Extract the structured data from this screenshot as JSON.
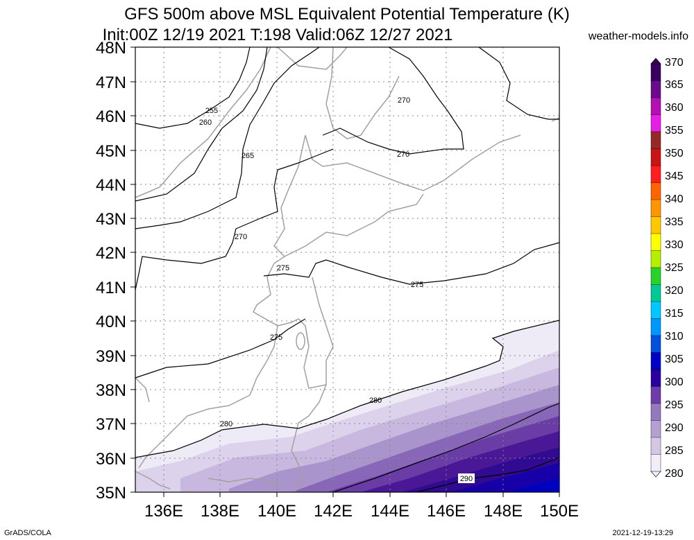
{
  "header": {
    "title_line1": "GFS 500m above MSL Equivalent Potential Temperature (K)",
    "title_line2": "Init:00Z 12/19 2021 T:198 Valid:06Z 12/27 2021",
    "watermark": "weather-models.info"
  },
  "map": {
    "lat_labels": [
      "48N",
      "47N",
      "46N",
      "45N",
      "44N",
      "43N",
      "42N",
      "41N",
      "40N",
      "39N",
      "38N",
      "37N",
      "36N",
      "35N"
    ],
    "lon_labels": [
      "136E",
      "138E",
      "140E",
      "142E",
      "144E",
      "146E",
      "148E",
      "150E"
    ],
    "contour_labels": [
      "255",
      "260",
      "265",
      "270",
      "270",
      "270",
      "275",
      "275",
      "275",
      "280",
      "280",
      "290"
    ]
  },
  "colorbar": {
    "labels": [
      "370",
      "365",
      "360",
      "355",
      "350",
      "345",
      "340",
      "335",
      "330",
      "325",
      "320",
      "315",
      "310",
      "305",
      "300",
      "295",
      "290",
      "285",
      "280"
    ],
    "colors": [
      "#3a0060",
      "#6a0a8c",
      "#b40fb4",
      "#e61ee6",
      "#962828",
      "#c81414",
      "#ff1e1e",
      "#ff6400",
      "#ff9600",
      "#ffc800",
      "#ffff00",
      "#b4f000",
      "#28d228",
      "#00c896",
      "#00c8ff",
      "#0096ff",
      "#0050dc",
      "#0000c8",
      "#2800a0",
      "#6e3ca8",
      "#9678be",
      "#b4a0d2",
      "#d2c8e6",
      "#f0ecf8"
    ]
  },
  "footer": {
    "left": "GrADS/COLA",
    "right": "2021-12-19-13:29"
  }
}
